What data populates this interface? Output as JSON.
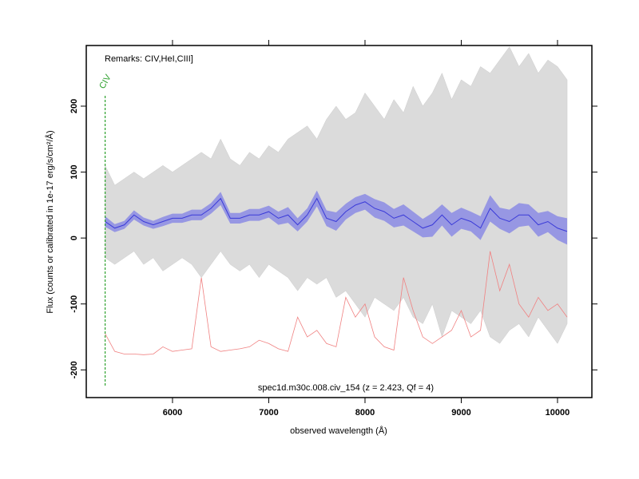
{
  "chart_data": {
    "type": "spectrum",
    "annotation": "Remarks: CIV,HeI,CIII]",
    "caption": "spec1d.m30c.008.civ_154 (z = 2.423, Qf = 4)",
    "x_label": "observed wavelength (Å)",
    "y_label": "Flux (counts or calibrated in 1e-17 erg/s/cm²/Å)",
    "xlim": [
      5104,
      10357
    ],
    "ylim": [
      -242,
      292
    ],
    "xticks": [
      6000,
      7000,
      8000,
      9000,
      10000
    ],
    "yticks": [
      -200,
      -100,
      0,
      100,
      200
    ],
    "x": [
      5300,
      5400,
      5500,
      5600,
      5700,
      5800,
      5900,
      6000,
      6100,
      6200,
      6300,
      6400,
      6500,
      6600,
      6700,
      6800,
      6900,
      7000,
      7100,
      7200,
      7300,
      7400,
      7500,
      7600,
      7700,
      7800,
      7900,
      8000,
      8100,
      8200,
      8300,
      8400,
      8500,
      8600,
      8700,
      8800,
      8900,
      9000,
      9100,
      9200,
      9300,
      9400,
      9500,
      9600,
      9700,
      9800,
      9900,
      10000,
      10100
    ],
    "flux_range": {
      "color": "#cccccc",
      "low": [
        -30,
        -40,
        -30,
        -20,
        -40,
        -30,
        -50,
        -40,
        -30,
        -40,
        -60,
        -40,
        -20,
        -40,
        -50,
        -40,
        -60,
        -40,
        -50,
        -60,
        -80,
        -60,
        -70,
        -60,
        -90,
        -80,
        -100,
        -120,
        -90,
        -100,
        -110,
        -90,
        -120,
        -130,
        -100,
        -150,
        -110,
        -120,
        -130,
        -110,
        -150,
        -160,
        -140,
        -130,
        -150,
        -120,
        -140,
        -160,
        -130
      ],
      "high": [
        110,
        80,
        90,
        100,
        90,
        100,
        110,
        100,
        110,
        120,
        130,
        120,
        150,
        120,
        110,
        130,
        120,
        140,
        130,
        150,
        160,
        170,
        150,
        180,
        200,
        180,
        190,
        220,
        200,
        180,
        210,
        190,
        230,
        200,
        220,
        250,
        210,
        240,
        230,
        260,
        250,
        270,
        290,
        260,
        280,
        250,
        270,
        260,
        240
      ]
    },
    "smoothed": {
      "color": "#3a3ad8",
      "band_color": "#8080e6",
      "values": [
        25,
        15,
        20,
        35,
        25,
        20,
        25,
        30,
        30,
        35,
        35,
        45,
        60,
        30,
        30,
        35,
        35,
        40,
        30,
        35,
        20,
        35,
        60,
        30,
        25,
        40,
        50,
        55,
        45,
        40,
        30,
        35,
        25,
        15,
        20,
        35,
        20,
        30,
        25,
        15,
        45,
        30,
        25,
        35,
        35,
        20,
        25,
        15,
        10
      ],
      "errors": [
        8,
        6,
        6,
        7,
        6,
        6,
        7,
        7,
        7,
        8,
        8,
        8,
        10,
        8,
        8,
        9,
        9,
        9,
        10,
        12,
        10,
        10,
        12,
        12,
        14,
        12,
        12,
        12,
        14,
        14,
        14,
        16,
        15,
        14,
        18,
        16,
        18,
        16,
        15,
        18,
        20,
        16,
        18,
        18,
        16,
        18,
        16,
        18,
        20
      ]
    },
    "noise": {
      "color": "#f08080",
      "values": [
        -145,
        -172,
        -176,
        -176,
        -177,
        -176,
        -165,
        -172,
        -170,
        -168,
        -60,
        -165,
        -172,
        -170,
        -168,
        -165,
        -155,
        -160,
        -168,
        -172,
        -120,
        -150,
        -140,
        -160,
        -165,
        -90,
        -120,
        -100,
        -150,
        -165,
        -170,
        -60,
        -110,
        -150,
        -160,
        -150,
        -140,
        -110,
        -150,
        -140,
        -20,
        -80,
        -40,
        -100,
        -120,
        -90,
        -110,
        -100,
        -120
      ]
    },
    "lines": [
      {
        "label": "CIV",
        "wavelength": 5300,
        "color": "#2ca02c"
      }
    ]
  }
}
